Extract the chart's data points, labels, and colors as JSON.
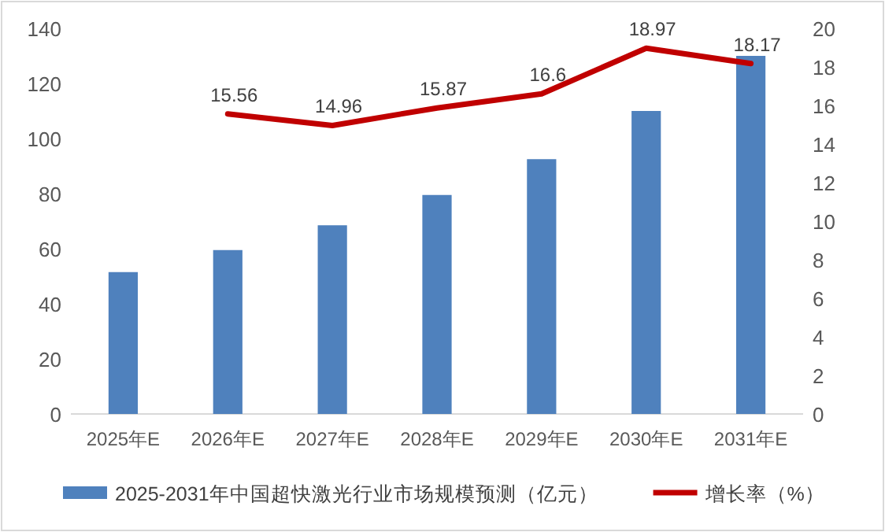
{
  "chart_data": {
    "type": "bar",
    "categories": [
      "2025年E",
      "2026年E",
      "2027年E",
      "2028年E",
      "2029年E",
      "2030年E",
      "2031年E"
    ],
    "series": [
      {
        "name": "2025-2031年中国超快激光行业市场规模预测（亿元）",
        "color": "#4f81bd",
        "values": [
          51.5,
          59.5,
          68.5,
          79.5,
          92.5,
          110,
          130
        ]
      },
      {
        "name": "增长率（%）",
        "type": "line",
        "axis": "y2",
        "color": "#c00000",
        "values": [
          null,
          15.56,
          14.96,
          15.87,
          16.6,
          18.97,
          18.17
        ],
        "value_labels": [
          null,
          "15.56",
          "14.96",
          "15.87",
          "16.6",
          "18.97",
          "18.17"
        ]
      }
    ],
    "ylim": [
      0,
      140
    ],
    "yticks": [
      0,
      20,
      40,
      60,
      80,
      100,
      120,
      140
    ],
    "y2lim": [
      0,
      20
    ],
    "y2ticks": [
      0,
      2,
      4,
      6,
      8,
      10,
      12,
      14,
      16,
      18,
      20
    ],
    "legend": "bottom",
    "grid": false
  }
}
